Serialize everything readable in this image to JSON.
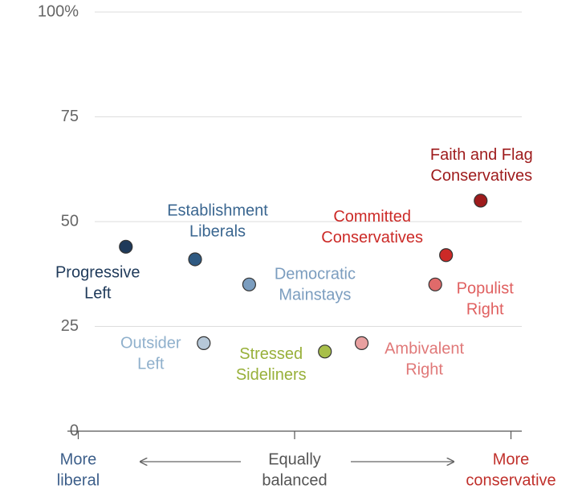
{
  "chart_data": {
    "type": "scatter",
    "xlim": [
      -1.05,
      1.05
    ],
    "xticks": [
      {
        "value": -1,
        "label": [
          "More",
          "liberal"
        ]
      },
      {
        "value": 0,
        "label": [
          "Equally",
          "balanced"
        ]
      },
      {
        "value": 1,
        "label": [
          "More",
          "conservative"
        ]
      }
    ],
    "xtick_colors": [
      "#3d5f8a",
      "#555555",
      "#c0302b"
    ],
    "ylim": [
      0,
      100
    ],
    "yticks": [
      0,
      25,
      50,
      75,
      {
        "value": 100,
        "label": "100%"
      }
    ],
    "grid": true,
    "series": [
      {
        "name": [
          "Progressive",
          "Left"
        ],
        "color": "#1f3a5a",
        "label_color": "#1f3a5a",
        "x": [
          -0.78
        ],
        "values": [
          44
        ]
      },
      {
        "name": [
          "Establishment",
          "Liberals"
        ],
        "color": "#2f5a82",
        "label_color": "#3a6690",
        "x": [
          -0.46
        ],
        "values": [
          41
        ]
      },
      {
        "name": [
          "Democratic",
          "Mainstays"
        ],
        "color": "#7b9dbf",
        "label_color": "#7b9dbf",
        "x": [
          -0.21
        ],
        "values": [
          35
        ]
      },
      {
        "name": [
          "Outsider",
          "Left"
        ],
        "color": "#b6c8d8",
        "label_color": "#8fb0cc",
        "x": [
          -0.42
        ],
        "values": [
          21
        ]
      },
      {
        "name": [
          "Stressed",
          "Sideliners"
        ],
        "color": "#a8bf4a",
        "label_color": "#98b03a",
        "x": [
          0.14
        ],
        "values": [
          19
        ]
      },
      {
        "name": [
          "Ambivalent",
          "Right"
        ],
        "color": "#e8a0a0",
        "label_color": "#e07878",
        "x": [
          0.31
        ],
        "values": [
          21
        ]
      },
      {
        "name": [
          "Populist",
          "Right"
        ],
        "color": "#e06a6a",
        "label_color": "#e06060",
        "x": [
          0.65
        ],
        "values": [
          35
        ]
      },
      {
        "name": [
          "Committed",
          "Conservatives"
        ],
        "color": "#cc2a27",
        "label_color": "#cc2a27",
        "x": [
          0.7
        ],
        "values": [
          42
        ]
      },
      {
        "name": [
          "Faith and Flag",
          "Conservatives"
        ],
        "color": "#9e1b1c",
        "label_color": "#9e1b1c",
        "x": [
          0.86
        ],
        "values": [
          55
        ]
      }
    ]
  }
}
